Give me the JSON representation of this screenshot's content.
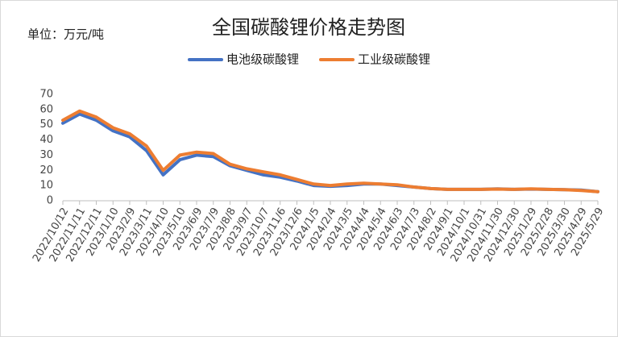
{
  "chart_data": {
    "type": "line",
    "title": "全国碳酸锂价格走势图",
    "unit_label": "单位：万元/吨",
    "x": [
      "2022/10/12",
      "2022/11/11",
      "2022/12/11",
      "2023/1/10",
      "2023/2/9",
      "2023/3/11",
      "2023/4/10",
      "2023/5/10",
      "2023/6/9",
      "2023/7/9",
      "2023/8/8",
      "2023/9/7",
      "2023/10/7",
      "2023/11/6",
      "2023/12/6",
      "2024/1/5",
      "2024/2/4",
      "2024/3/5",
      "2024/4/4",
      "2024/5/4",
      "2024/6/3",
      "2024/7/3",
      "2024/8/2",
      "2024/9/1",
      "2024/10/1",
      "2024/10/31",
      "2024/11/30",
      "2024/12/30",
      "2025/1/29",
      "2025/2/28",
      "2025/3/30",
      "2025/4/29",
      "2025/5/29"
    ],
    "series": [
      {
        "name": "电池级碳酸锂",
        "color": "#4472c4",
        "values": [
          51,
          57,
          53,
          46,
          42,
          33,
          17,
          27,
          30,
          29,
          23,
          20,
          17,
          15.5,
          13,
          10,
          9.5,
          10,
          11,
          11,
          10,
          9,
          8,
          7.5,
          7.5,
          7.5,
          7.8,
          7.5,
          7.7,
          7.5,
          7.3,
          7,
          6
        ]
      },
      {
        "name": "工业级碳酸锂",
        "color": "#ed7d31",
        "values": [
          53,
          59,
          55,
          48,
          44,
          36,
          20,
          30,
          32,
          31,
          24,
          21,
          19,
          17,
          14,
          11,
          10,
          11,
          11.5,
          11,
          10.5,
          9,
          8,
          7.5,
          7.5,
          7.5,
          7.7,
          7.5,
          7.8,
          7.5,
          7.3,
          6.8,
          6
        ]
      }
    ],
    "ylim": [
      0,
      70
    ],
    "yticks": [
      0,
      10,
      20,
      30,
      40,
      50,
      60,
      70
    ],
    "grid": false
  }
}
